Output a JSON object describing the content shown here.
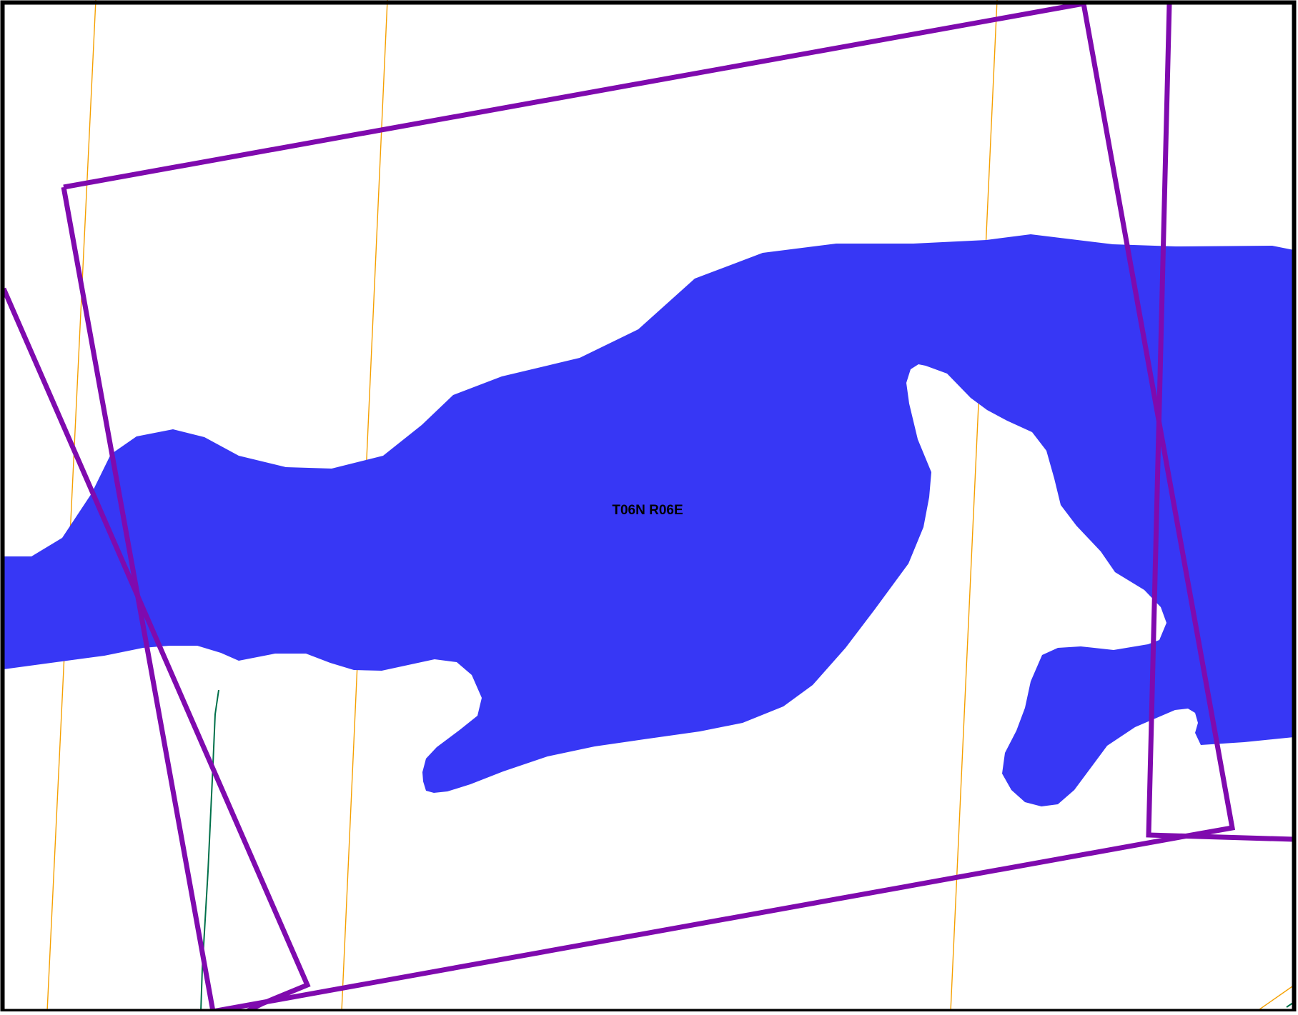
{
  "map": {
    "township_label": "T06N R06E",
    "colors": {
      "water_fill": "#3737F5",
      "boundary_outline": "#7F0AAE",
      "grid_lines": "#F5A000",
      "road_line": "#00704A",
      "frame": "#000000",
      "background": "#FFFFFF",
      "label_text": "#000000"
    },
    "layers": [
      "section-grid-lines",
      "water-body",
      "road-line",
      "parcel-boundaries",
      "township-label",
      "map-frame"
    ]
  }
}
